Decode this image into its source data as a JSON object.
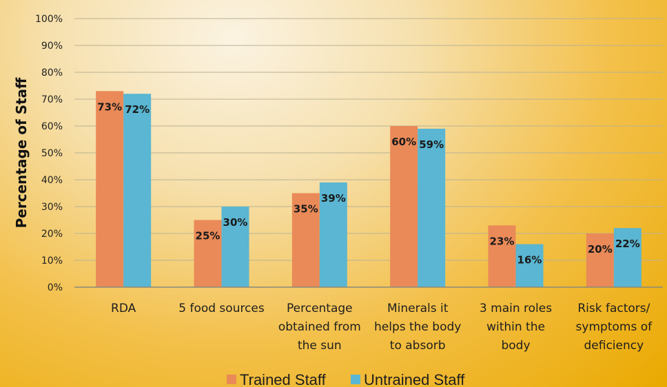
{
  "chart_data": {
    "type": "bar",
    "title": "",
    "xlabel": "",
    "ylabel": "Percentage of Staff",
    "ylim": [
      0,
      100
    ],
    "yticks": [
      "0%",
      "10%",
      "20%",
      "30%",
      "40%",
      "50%",
      "60%",
      "70%",
      "80%",
      "90%",
      "100%"
    ],
    "categories": [
      [
        "RDA"
      ],
      [
        "5 food sources"
      ],
      [
        "Percentage",
        "obtained from",
        "the sun"
      ],
      [
        "Minerals it",
        "helps the body",
        "to absorb"
      ],
      [
        "3 main roles",
        "within the",
        "body"
      ],
      [
        "Risk factors/",
        "symptoms of",
        "deficiency"
      ]
    ],
    "series": [
      {
        "name": "Trained Staff",
        "color": "#ea8a58",
        "values": [
          73,
          25,
          35,
          60,
          23,
          20
        ],
        "labels": [
          "73%",
          "25%",
          "35%",
          "60%",
          "23%",
          "20%"
        ]
      },
      {
        "name": "Untrained Staff",
        "color": "#5ab6d2",
        "values": [
          72,
          30,
          39,
          59,
          16,
          22
        ],
        "labels": [
          "72%",
          "30%",
          "39%",
          "59%",
          "16%",
          "22%"
        ]
      }
    ],
    "grid": true,
    "legend_position": "bottom-center"
  }
}
